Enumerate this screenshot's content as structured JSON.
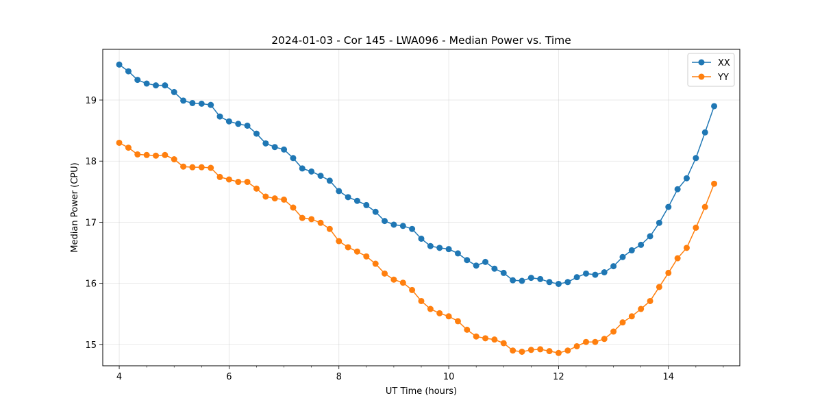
{
  "chart_data": {
    "type": "line",
    "title": "2024-01-03 - Cor 145 - LWA096 - Median Power vs. Time",
    "xlabel": "UT Time (hours)",
    "ylabel": "Median Power (CPU)",
    "xlim": [
      3.7,
      15.3
    ],
    "ylim": [
      14.65,
      19.83
    ],
    "xticks": [
      4,
      6,
      8,
      10,
      12,
      14
    ],
    "xtick_labels": [
      "4",
      "6",
      "8",
      "10",
      "12",
      "14"
    ],
    "yticks": [
      15,
      16,
      17,
      18,
      19
    ],
    "ytick_labels": [
      "15",
      "16",
      "17",
      "18",
      "19"
    ],
    "grid": true,
    "legend_position": "top-right",
    "x": [
      4.0,
      4.167,
      4.333,
      4.5,
      4.667,
      4.833,
      5.0,
      5.167,
      5.333,
      5.5,
      5.667,
      5.833,
      6.0,
      6.167,
      6.333,
      6.5,
      6.667,
      6.833,
      7.0,
      7.167,
      7.333,
      7.5,
      7.667,
      7.833,
      8.0,
      8.167,
      8.333,
      8.5,
      8.667,
      8.833,
      9.0,
      9.167,
      9.333,
      9.5,
      9.667,
      9.833,
      10.0,
      10.167,
      10.333,
      10.5,
      10.667,
      10.833,
      11.0,
      11.167,
      11.333,
      11.5,
      11.667,
      11.833,
      12.0,
      12.167,
      12.333,
      12.5,
      12.667,
      12.833,
      13.0,
      13.167,
      13.333,
      13.5,
      13.667,
      13.833,
      14.0,
      14.167,
      14.333,
      14.5,
      14.667,
      14.833
    ],
    "series": [
      {
        "name": "XX",
        "color": "#1f77b4",
        "values": [
          19.58,
          19.47,
          19.33,
          19.27,
          19.24,
          19.24,
          19.13,
          18.99,
          18.95,
          18.94,
          18.92,
          18.73,
          18.65,
          18.61,
          18.58,
          18.45,
          18.29,
          18.23,
          18.19,
          18.05,
          17.88,
          17.83,
          17.76,
          17.68,
          17.51,
          17.41,
          17.35,
          17.28,
          17.17,
          17.02,
          16.96,
          16.94,
          16.89,
          16.73,
          16.61,
          16.58,
          16.56,
          16.49,
          16.38,
          16.29,
          16.35,
          16.24,
          16.17,
          16.05,
          16.04,
          16.09,
          16.07,
          16.02,
          15.99,
          16.02,
          16.1,
          16.16,
          16.14,
          16.18,
          16.28,
          16.43,
          16.54,
          16.63,
          16.77,
          16.99,
          17.25,
          17.54,
          17.72,
          18.05,
          18.47,
          18.9
        ]
      },
      {
        "name": "YY",
        "color": "#ff7f0e",
        "values": [
          18.3,
          18.22,
          18.11,
          18.1,
          18.09,
          18.1,
          18.03,
          17.91,
          17.9,
          17.9,
          17.89,
          17.74,
          17.7,
          17.66,
          17.66,
          17.55,
          17.42,
          17.39,
          17.37,
          17.24,
          17.07,
          17.05,
          16.99,
          16.89,
          16.69,
          16.59,
          16.52,
          16.44,
          16.32,
          16.16,
          16.06,
          16.01,
          15.89,
          15.71,
          15.58,
          15.51,
          15.46,
          15.38,
          15.24,
          15.13,
          15.1,
          15.08,
          15.02,
          14.9,
          14.88,
          14.91,
          14.92,
          14.89,
          14.86,
          14.9,
          14.97,
          15.04,
          15.04,
          15.09,
          15.21,
          15.36,
          15.46,
          15.58,
          15.71,
          15.94,
          16.17,
          16.41,
          16.58,
          16.91,
          17.25,
          17.63
        ]
      }
    ]
  }
}
